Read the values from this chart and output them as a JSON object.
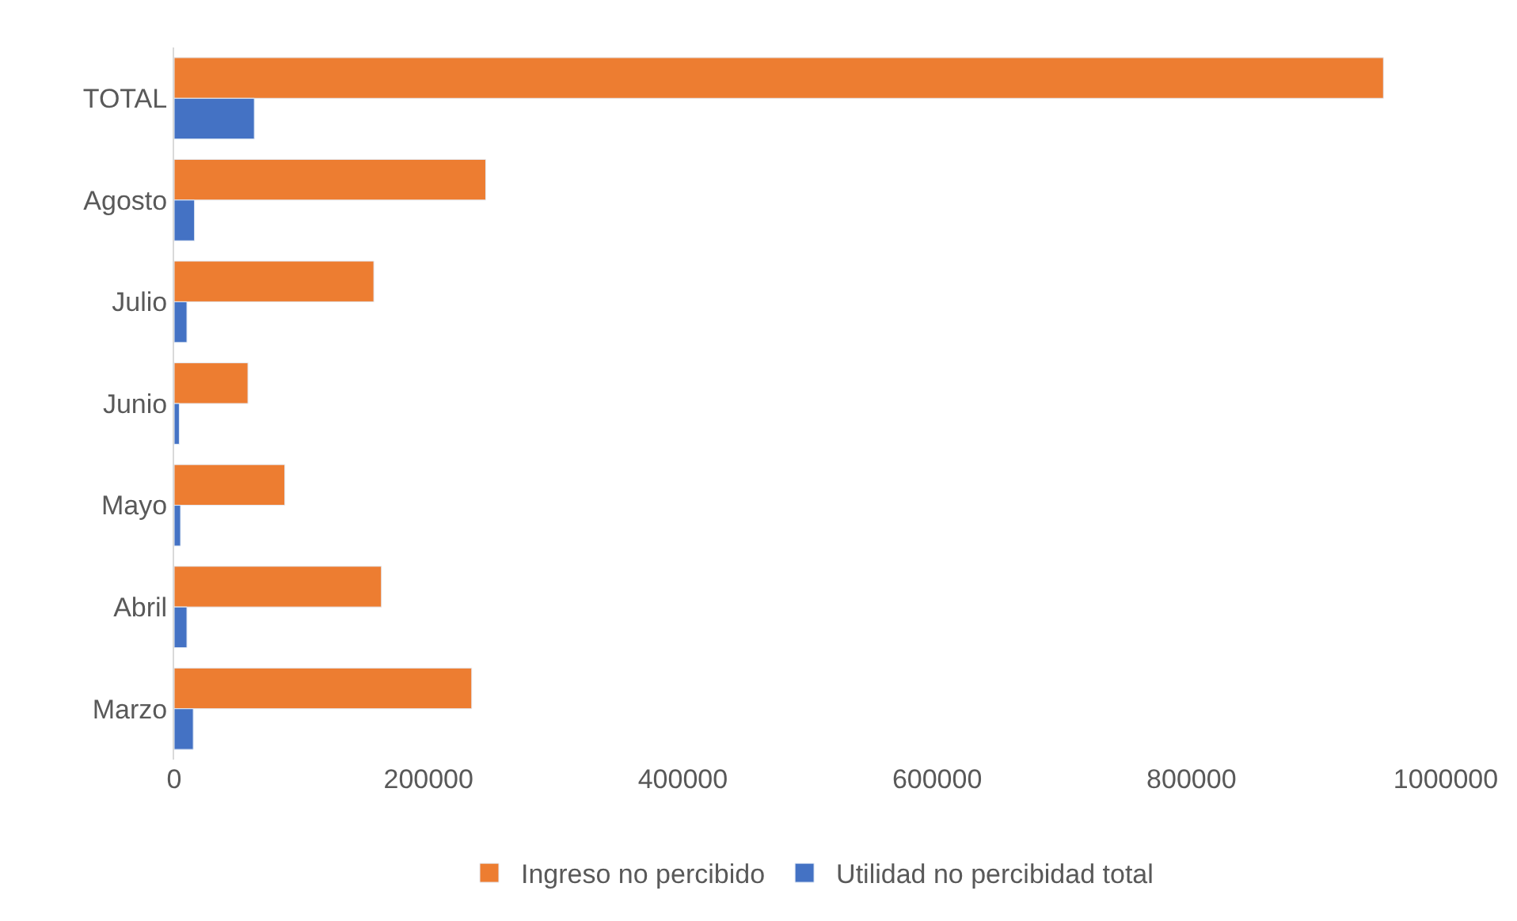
{
  "chart_data": {
    "type": "bar",
    "orientation": "horizontal",
    "categories": [
      "TOTAL",
      "Agosto",
      "Julio",
      "Junio",
      "Mayo",
      "Abril",
      "Marzo"
    ],
    "series": [
      {
        "name": "Ingreso no percibido",
        "color": "#ed7d31",
        "values": [
          951000,
          245000,
          157000,
          58000,
          87000,
          163000,
          234000
        ]
      },
      {
        "name": "Utilidad no percibidad total",
        "color": "#4472c4",
        "values": [
          63000,
          16000,
          10000,
          4000,
          5000,
          10000,
          15000
        ]
      }
    ],
    "xlim": [
      0,
      1000000
    ],
    "xticks": [
      0,
      200000,
      400000,
      600000,
      800000,
      1000000
    ],
    "legend": "bottom"
  }
}
